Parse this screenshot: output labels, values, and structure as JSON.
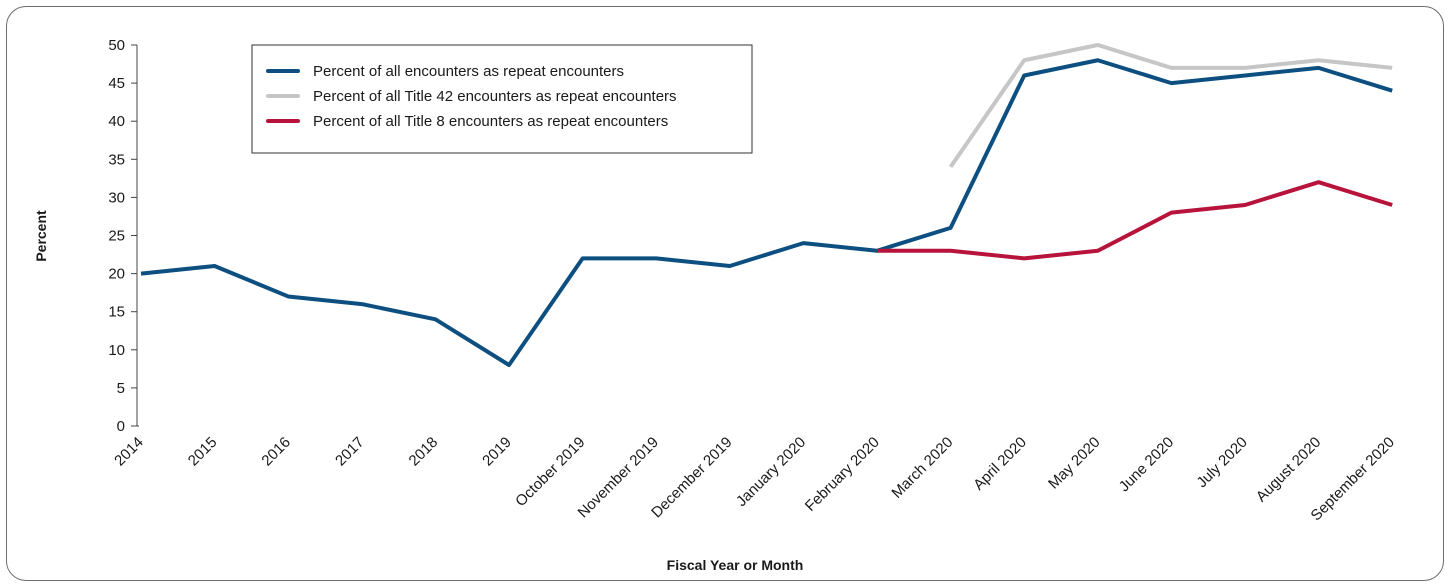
{
  "chart_data": {
    "type": "line",
    "xlabel": "Fiscal Year or Month",
    "ylabel": "Percent",
    "ylim": [
      0,
      50
    ],
    "yticks": [
      0,
      5,
      10,
      15,
      20,
      25,
      30,
      35,
      40,
      45,
      50
    ],
    "grid": false,
    "legend_position": "top-left",
    "categories": [
      "2014",
      "2015",
      "2016",
      "2017",
      "2018",
      "2019",
      "October 2019",
      "November 2019",
      "December 2019",
      "January 2020",
      "February 2020",
      "March 2020",
      "April 2020",
      "May 2020",
      "June 2020",
      "July 2020",
      "August 2020",
      "September 2020"
    ],
    "series": [
      {
        "name": "Percent of all encounters as repeat encounters",
        "color": "#0d4f80",
        "values": [
          20,
          21,
          17,
          16,
          14,
          8,
          22,
          22,
          21,
          24,
          23,
          26,
          46,
          48,
          45,
          46,
          47,
          44
        ]
      },
      {
        "name": "Percent of all Title 42 encounters as repeat encounters",
        "color": "#c6c6c6",
        "values": [
          null,
          null,
          null,
          null,
          null,
          null,
          null,
          null,
          null,
          null,
          null,
          34,
          48,
          50,
          47,
          47,
          48,
          47
        ]
      },
      {
        "name": "Percent of all Title 8 encounters as repeat encounters",
        "color": "#b8133a",
        "values": [
          null,
          null,
          null,
          null,
          null,
          null,
          null,
          null,
          null,
          null,
          23,
          23,
          22,
          23,
          28,
          29,
          32,
          29
        ]
      }
    ]
  }
}
